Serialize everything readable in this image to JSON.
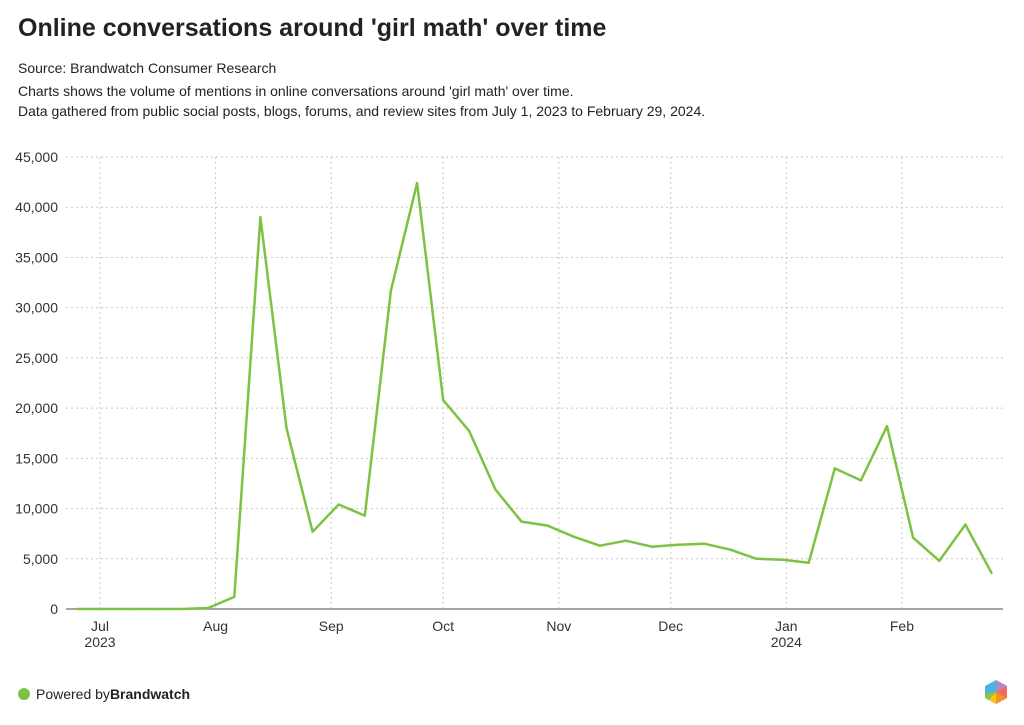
{
  "title": "Online conversations around 'girl math' over time",
  "source": "Source: Brandwatch Consumer Research",
  "description_1": "Charts shows the volume of mentions in online conversations around 'girl math' over time.",
  "description_2": "Data gathered from public social posts, blogs, forums, and review sites from July 1, 2023 to February 29, 2024.",
  "footer": {
    "prefix": "Powered by ",
    "brand": "Brandwatch"
  },
  "colors": {
    "line": "#7dc242",
    "grid": "#c8c8c8"
  },
  "chart_data": {
    "type": "line",
    "title": "Online conversations around 'girl math' over time",
    "xlabel": "",
    "ylabel": "",
    "ylim": [
      0,
      45000
    ],
    "yticks": [
      0,
      5000,
      10000,
      15000,
      20000,
      25000,
      30000,
      35000,
      40000,
      45000
    ],
    "ytick_labels": [
      "0",
      "5,000",
      "10,000",
      "15,000",
      "20,000",
      "25,000",
      "30,000",
      "35,000",
      "40,000",
      "45,000"
    ],
    "xticks": [
      {
        "date": "2023-07-01",
        "label": "Jul",
        "sub": "2023"
      },
      {
        "date": "2023-08-01",
        "label": "Aug",
        "sub": ""
      },
      {
        "date": "2023-09-01",
        "label": "Sep",
        "sub": ""
      },
      {
        "date": "2023-10-01",
        "label": "Oct",
        "sub": ""
      },
      {
        "date": "2023-11-01",
        "label": "Nov",
        "sub": ""
      },
      {
        "date": "2023-12-01",
        "label": "Dec",
        "sub": ""
      },
      {
        "date": "2024-01-01",
        "label": "Jan",
        "sub": "2024"
      },
      {
        "date": "2024-02-01",
        "label": "Feb",
        "sub": ""
      }
    ],
    "x_start": "2023-06-25",
    "x_step_days": 7,
    "grid": true,
    "series": [
      {
        "name": "Mentions",
        "values": [
          0,
          0,
          0,
          0,
          0,
          100,
          1200,
          39000,
          18000,
          7700,
          10400,
          9300,
          31700,
          42400,
          20800,
          17700,
          11900,
          8700,
          8300,
          7200,
          6300,
          6800,
          6200,
          6400,
          6500,
          5900,
          5000,
          4900,
          4600,
          14000,
          12800,
          18200,
          7100,
          4800,
          8400,
          3600
        ]
      }
    ]
  }
}
